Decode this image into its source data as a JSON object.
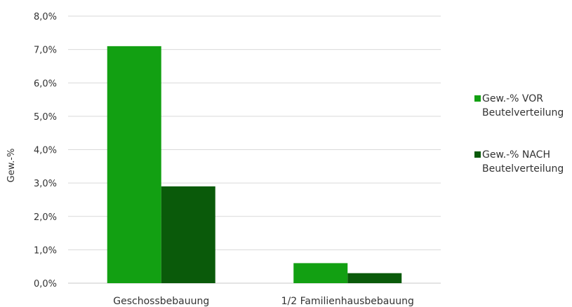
{
  "chart_data": {
    "type": "bar",
    "categories": [
      "Geschossbebauung",
      "1/2 Familienhausbebauung"
    ],
    "series": [
      {
        "name": "Gew.-% VOR Beutelverteilung",
        "name_lines": [
          "Gew.-% VOR",
          "Beutelverteilung"
        ],
        "color": "#12a012",
        "values": [
          7.1,
          0.6
        ]
      },
      {
        "name": "Gew.-% NACH Beutelverteilung",
        "name_lines": [
          "Gew.-% NACH",
          "Beutelverteilung"
        ],
        "color": "#0a5a0a",
        "values": [
          2.9,
          0.3
        ]
      }
    ],
    "title": "",
    "xlabel": "",
    "ylabel": "Gew.-%",
    "ylim": [
      0,
      8
    ],
    "yticks": [
      "0,0%",
      "1,0%",
      "2,0%",
      "3,0%",
      "4,0%",
      "5,0%",
      "6,0%",
      "7,0%",
      "8,0%"
    ],
    "grid": true,
    "legend_position": "right"
  }
}
